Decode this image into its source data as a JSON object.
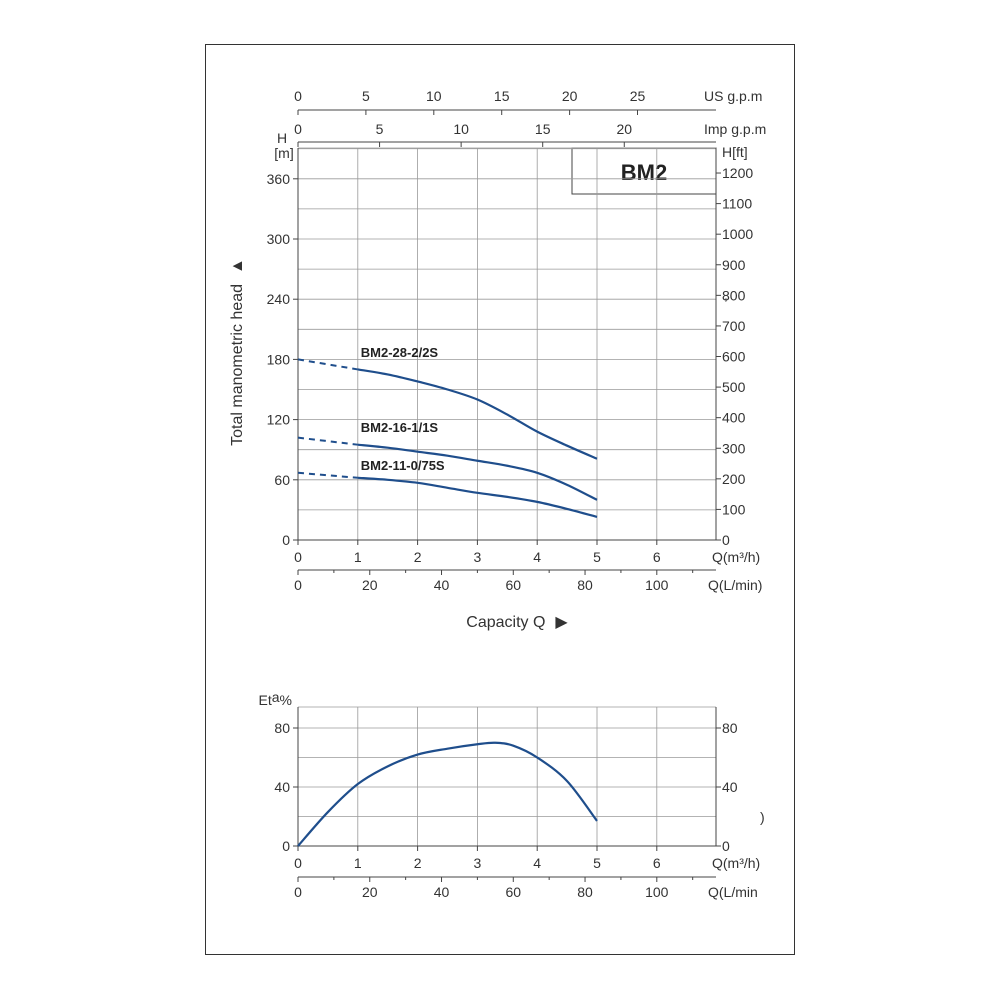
{
  "chart_data": [
    {
      "type": "line",
      "title": "BM2",
      "ylabel": "Total manometric head",
      "y_left_unit": "H\n[m]",
      "y_left_unit_parts": [
        "H",
        "[m]"
      ],
      "y_right_unit": "H[ft]",
      "ylim": [
        0,
        390
      ],
      "y_left_ticks": [
        0,
        60,
        120,
        180,
        240,
        300,
        360
      ],
      "y_right_ticks": [
        0,
        100,
        200,
        300,
        400,
        500,
        600,
        700,
        800,
        900,
        1000,
        1100,
        1200
      ],
      "y_right_stray_mark": ",",
      "xlabel": "Capacity Q",
      "xlabel_arrow": "▶",
      "ylabel_arrow": "▲",
      "x_m3h_unit": "Q(m³/h)",
      "x_m3h_ticks": [
        0,
        1,
        2,
        3,
        4,
        5,
        6
      ],
      "x_lmin_unit": "Q(L/min)",
      "x_lmin_ticks": [
        0,
        20,
        40,
        60,
        80,
        100
      ],
      "x_usgpm_unit": "US g.p.m",
      "x_usgpm_ticks": [
        0,
        5,
        10,
        15,
        20,
        25
      ],
      "x_impgpm_unit": "Imp g.p.m",
      "x_impgpm_ticks": [
        0,
        5,
        10,
        15,
        20
      ],
      "xlim": [
        0,
        6.7
      ],
      "grid": true,
      "line_color": "#1f4e8c",
      "series": [
        {
          "name": "BM2-28-2/2S",
          "dashed": [
            [
              0,
              180
            ],
            [
              1,
              170
            ]
          ],
          "solid": [
            [
              1,
              170
            ],
            [
              1.5,
              165
            ],
            [
              2,
              158
            ],
            [
              2.5,
              150
            ],
            [
              3,
              140
            ],
            [
              3.5,
              125
            ],
            [
              4,
              108
            ],
            [
              4.5,
              94
            ],
            [
              5,
              81
            ]
          ]
        },
        {
          "name": "BM2-16-1/1S",
          "dashed": [
            [
              0,
              102
            ],
            [
              1,
              95
            ]
          ],
          "solid": [
            [
              1,
              95
            ],
            [
              1.5,
              92
            ],
            [
              2,
              88
            ],
            [
              2.5,
              84
            ],
            [
              3,
              79
            ],
            [
              3.5,
              74
            ],
            [
              4,
              67
            ],
            [
              4.5,
              55
            ],
            [
              5,
              40
            ]
          ]
        },
        {
          "name": "BM2-11-0/75S",
          "dashed": [
            [
              0,
              67
            ],
            [
              1,
              62
            ]
          ],
          "solid": [
            [
              1,
              62
            ],
            [
              1.5,
              60
            ],
            [
              2,
              57
            ],
            [
              2.5,
              52
            ],
            [
              3,
              47
            ],
            [
              3.5,
              43
            ],
            [
              4,
              38
            ],
            [
              4.5,
              31
            ],
            [
              5,
              23
            ]
          ]
        }
      ]
    },
    {
      "type": "line",
      "ylabel": "Eta%",
      "ylabel_parts": [
        "Et",
        "a",
        "%"
      ],
      "ylim": [
        0,
        90
      ],
      "y_left_ticks": [
        0,
        40,
        80
      ],
      "y_right_ticks": [
        0,
        40,
        80
      ],
      "y_right_stray_mark": ")",
      "x_m3h_unit": "Q(m³/h)",
      "x_m3h_ticks": [
        0,
        1,
        2,
        3,
        4,
        5,
        6
      ],
      "x_lmin_unit": "Q(L/min",
      "x_lmin_ticks": [
        0,
        20,
        40,
        60,
        80,
        100
      ],
      "xlim": [
        0,
        6.7
      ],
      "grid": true,
      "line_color": "#1f4e8c",
      "series": [
        {
          "points": [
            [
              0,
              0
            ],
            [
              0.5,
              23
            ],
            [
              1,
              42
            ],
            [
              1.5,
              54
            ],
            [
              2,
              62
            ],
            [
              2.5,
              66
            ],
            [
              3,
              69
            ],
            [
              3.3,
              70
            ],
            [
              3.6,
              68
            ],
            [
              4,
              60
            ],
            [
              4.5,
              44
            ],
            [
              5,
              17
            ]
          ]
        }
      ]
    }
  ]
}
